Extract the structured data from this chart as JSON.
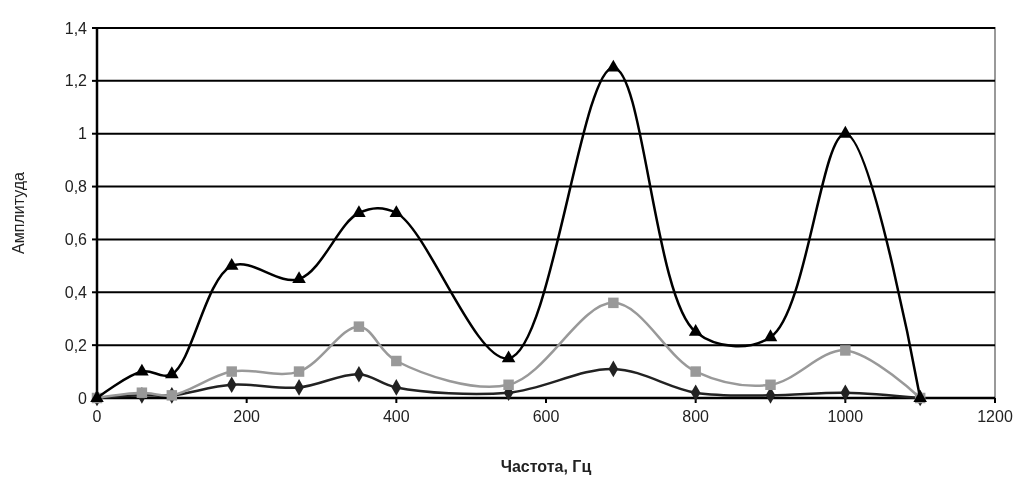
{
  "chart_data": {
    "type": "line",
    "xlabel": "Частота, Гц",
    "ylabel": "Амплитуда",
    "x": [
      0,
      60,
      100,
      180,
      270,
      350,
      400,
      550,
      690,
      800,
      900,
      1000,
      1100
    ],
    "series": [
      {
        "color": "#000000",
        "marker": "triangle",
        "values": [
          0,
          0.1,
          0.09,
          0.5,
          0.45,
          0.7,
          0.7,
          0.15,
          1.25,
          0.25,
          0.23,
          1.0,
          0
        ]
      },
      {
        "color": "#999999",
        "marker": "square",
        "values": [
          0,
          0.02,
          0.01,
          0.1,
          0.1,
          0.27,
          0.14,
          0.05,
          0.36,
          0.1,
          0.05,
          0.18,
          0
        ]
      },
      {
        "color": "#222222",
        "marker": "diamond",
        "values": [
          0,
          0.01,
          0.01,
          0.05,
          0.04,
          0.09,
          0.04,
          0.02,
          0.11,
          0.02,
          0.01,
          0.02,
          0
        ]
      }
    ],
    "xlim": [
      0,
      1200
    ],
    "xticks": [
      0,
      200,
      400,
      600,
      800,
      1000,
      1200
    ],
    "ylim": [
      0,
      1.4
    ],
    "yticks": [
      {
        "value": 0,
        "label": "0"
      },
      {
        "value": 0.2,
        "label": "0,2"
      },
      {
        "value": 0.4,
        "label": "0,4"
      },
      {
        "value": 0.6,
        "label": "0,6"
      },
      {
        "value": 0.8,
        "label": "0,8"
      },
      {
        "value": 1,
        "label": "1"
      },
      {
        "value": 1.2,
        "label": "1,2"
      },
      {
        "value": 1.4,
        "label": "1,4"
      }
    ],
    "grid": "y"
  }
}
